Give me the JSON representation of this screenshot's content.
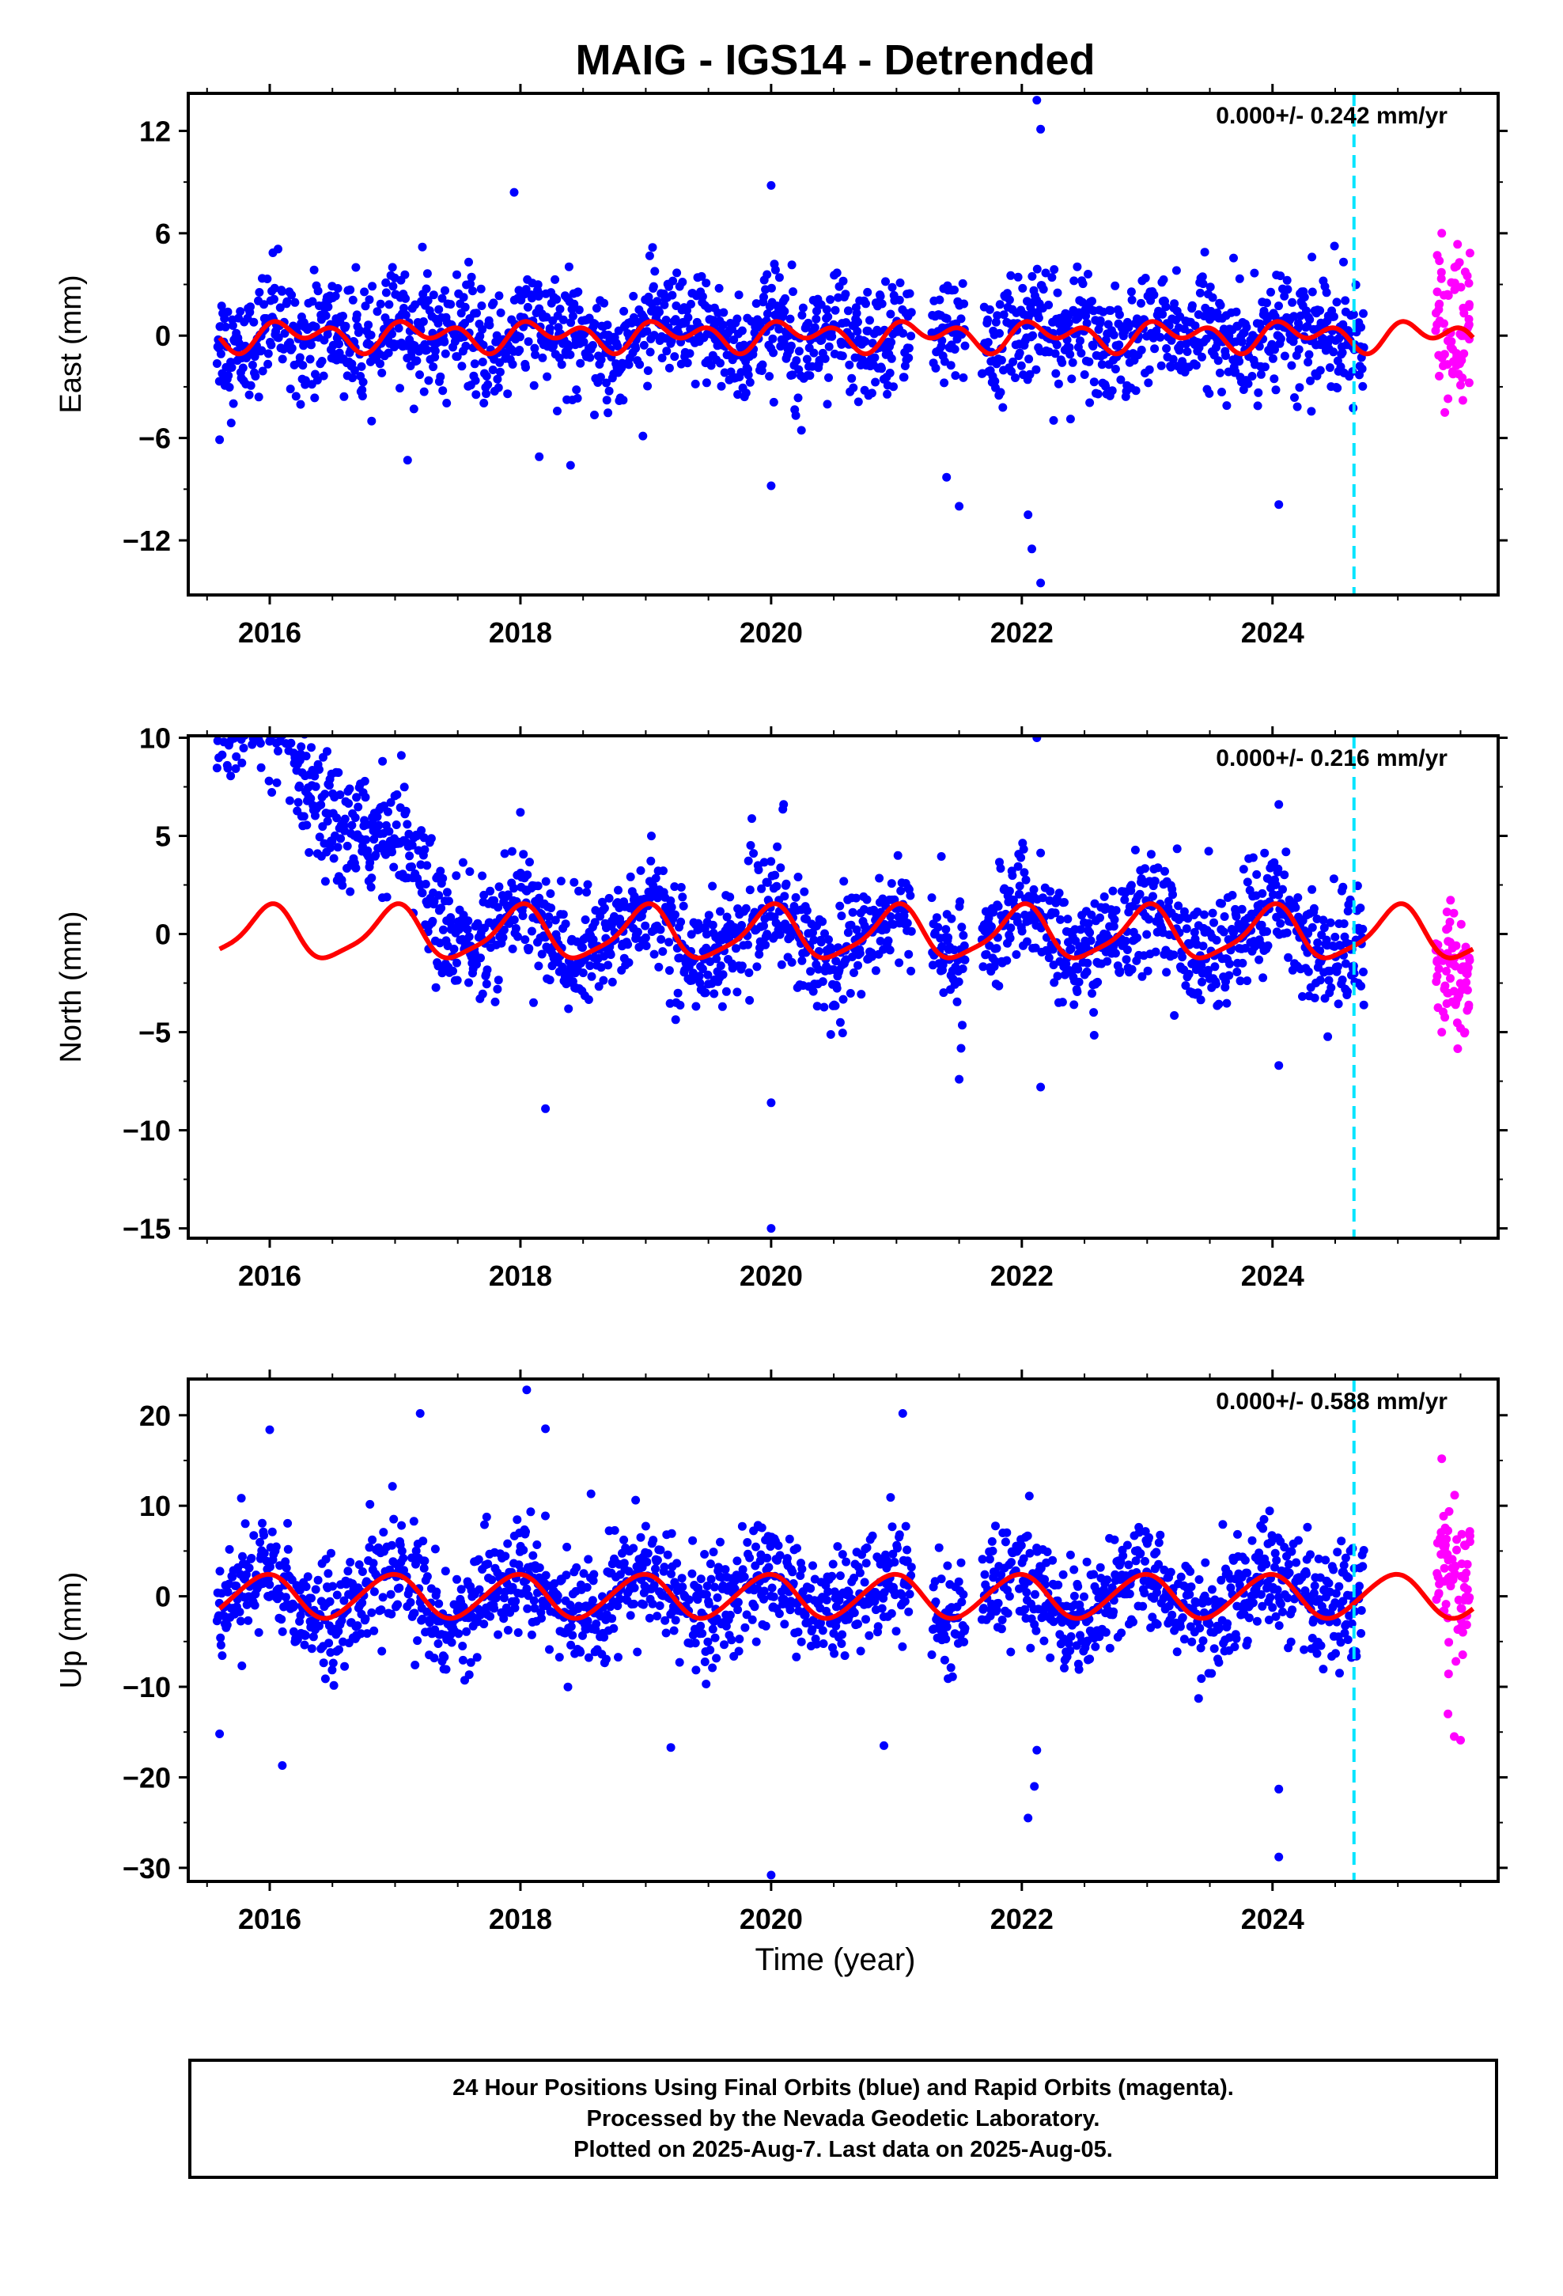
{
  "title": "MAIG - IGS14 - Detrended",
  "xlabel": "Time (year)",
  "footer": {
    "line1": "24 Hour Positions Using Final Orbits (blue) and Rapid Orbits (magenta).",
    "line2": "Processed by the Nevada Geodetic Laboratory.",
    "line3": "Plotted on 2025-Aug-7. Last data on 2025-Aug-05."
  },
  "colors": {
    "final": "#0000ff",
    "rapid": "#ff00ff",
    "model": "#ff0000",
    "marker": "#00e5ff"
  },
  "chart_data": [
    {
      "type": "scatter",
      "panel": "east",
      "ylabel": "East (mm)",
      "rate": "0.000+/- 0.242 mm/yr",
      "xlim": [
        2015.35,
        2025.8
      ],
      "ylim": [
        -15.2,
        14.2
      ],
      "yticks": [
        12,
        6,
        0,
        -6,
        -12
      ],
      "xticks": [
        2016,
        2018,
        2020,
        2022,
        2024
      ],
      "marker_year": 2024.65,
      "model": {
        "amp_annual": 0.5,
        "amp_semiannual": 0.6,
        "phase_annual": 0.3,
        "phase_semiannual": 1.4
      },
      "outliers_final": [
        [
          2022.12,
          13.8
        ],
        [
          2022.15,
          12.1
        ],
        [
          2020.0,
          8.8
        ],
        [
          2017.95,
          8.4
        ],
        [
          2022.05,
          -10.5
        ],
        [
          2022.08,
          -12.5
        ],
        [
          2022.15,
          -14.5
        ],
        [
          2021.5,
          -10.0
        ],
        [
          2024.05,
          -9.9
        ],
        [
          2018.4,
          -7.6
        ],
        [
          2018.15,
          -7.1
        ],
        [
          2017.1,
          -7.3
        ],
        [
          2020.0,
          -8.8
        ],
        [
          2015.6,
          -6.1
        ],
        [
          2021.4,
          -8.3
        ]
      ],
      "rapid": {
        "x0": 2025.3,
        "x1": 2025.58,
        "mean": 0.5,
        "spread": 2.2,
        "extremes": [
          [
            2025.35,
            6.0
          ],
          [
            2025.4,
            -3.7
          ],
          [
            2025.5,
            -2.9
          ]
        ]
      }
    },
    {
      "type": "scatter",
      "panel": "north",
      "ylabel": "North (mm)",
      "rate": "0.000+/- 0.216 mm/yr",
      "xlim": [
        2015.35,
        2025.8
      ],
      "ylim": [
        -15.5,
        10.1
      ],
      "yticks": [
        10,
        5,
        0,
        -5,
        -10,
        -15
      ],
      "xticks": [
        2016,
        2018,
        2020,
        2022,
        2024
      ],
      "marker_year": 2024.65,
      "model": {
        "amp_annual": 1.3,
        "amp_semiannual": 0.3,
        "phase_annual": 1.6,
        "phase_semiannual": 0.8
      },
      "outliers_final": [
        [
          2022.12,
          10.0
        ],
        [
          2016.9,
          8.8
        ],
        [
          2017.05,
          9.1
        ],
        [
          2020.0,
          -15.0
        ],
        [
          2020.0,
          -8.6
        ],
        [
          2018.2,
          -8.9
        ],
        [
          2022.15,
          -7.8
        ],
        [
          2021.5,
          -7.4
        ],
        [
          2024.05,
          -6.7
        ],
        [
          2018.0,
          6.2
        ],
        [
          2020.1,
          6.6
        ],
        [
          2024.05,
          6.6
        ]
      ],
      "rapid": {
        "x0": 2025.3,
        "x1": 2025.58,
        "mean": -2.0,
        "spread": 1.5,
        "extremes": [
          [
            2025.35,
            -5.0
          ],
          [
            2025.5,
            -4.8
          ],
          [
            2025.4,
            0.3
          ]
        ]
      }
    },
    {
      "type": "scatter",
      "panel": "up",
      "ylabel": "Up (mm)",
      "rate": "0.000+/- 0.588 mm/yr",
      "xlim": [
        2015.35,
        2025.8
      ],
      "ylim": [
        -31.5,
        24.0
      ],
      "yticks": [
        20,
        10,
        0,
        -10,
        -20,
        -30
      ],
      "xticks": [
        2016,
        2018,
        2020,
        2022,
        2024
      ],
      "marker_year": 2024.65,
      "model": {
        "amp_annual": 2.4,
        "amp_semiannual": 0.2,
        "phase_annual": 1.8,
        "phase_semiannual": 0.4
      },
      "outliers_final": [
        [
          2018.05,
          22.8
        ],
        [
          2018.2,
          18.5
        ],
        [
          2017.2,
          20.2
        ],
        [
          2016.0,
          18.4
        ],
        [
          2021.05,
          20.2
        ],
        [
          2020.0,
          -30.8
        ],
        [
          2024.05,
          -28.8
        ],
        [
          2022.05,
          -24.5
        ],
        [
          2024.05,
          -21.3
        ],
        [
          2022.1,
          -21.0
        ],
        [
          2016.1,
          -18.7
        ],
        [
          2015.6,
          -15.2
        ],
        [
          2020.9,
          -16.5
        ],
        [
          2019.2,
          -16.7
        ],
        [
          2022.12,
          -17.0
        ]
      ],
      "rapid": {
        "x0": 2025.3,
        "x1": 2025.58,
        "mean": 2.0,
        "spread": 5.0,
        "extremes": [
          [
            2025.35,
            15.2
          ],
          [
            2025.45,
            -15.5
          ],
          [
            2025.5,
            -15.9
          ],
          [
            2025.4,
            -13.0
          ]
        ]
      }
    }
  ]
}
